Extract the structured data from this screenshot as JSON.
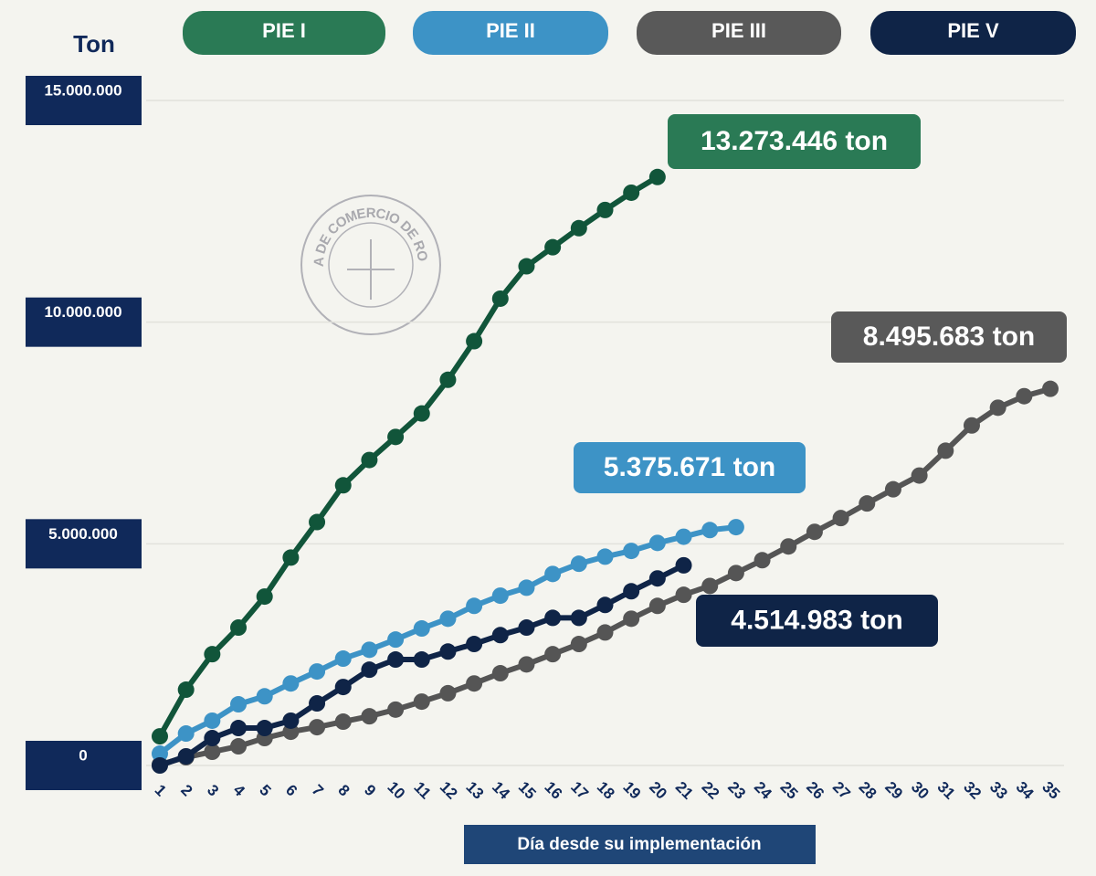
{
  "chart_data": {
    "type": "line",
    "y_label": "Ton",
    "x_label": "Día desde su implementación",
    "logo": "BOLSA DE COMERCIO DE ROSARIO",
    "x": [
      1,
      2,
      3,
      4,
      5,
      6,
      7,
      8,
      9,
      10,
      11,
      12,
      13,
      14,
      15,
      16,
      17,
      18,
      19,
      20,
      21,
      22,
      23,
      24,
      25,
      26,
      27,
      28,
      29,
      30,
      31,
      32,
      33,
      34,
      35
    ],
    "xlim": [
      1,
      35
    ],
    "ylim": [
      0,
      15000000
    ],
    "yticks": [
      0,
      {
        "value": 5000000,
        "label": "5.000.000"
      },
      {
        "value": 10000000,
        "label": "10.000.000"
      },
      {
        "value": 15000000,
        "label": "15.000.000"
      }
    ],
    "grid": true,
    "series": [
      {
        "name": "PIE I",
        "color": "#11553a",
        "legend_color": "#2a7a55",
        "values": [
          658000,
          1710000,
          2510000,
          3110000,
          3810000,
          4690000,
          5490000,
          6320000,
          6890000,
          7410000,
          7940000,
          8700000,
          9570000,
          10530000,
          11260000,
          11690000,
          12120000,
          12530000,
          12920000,
          13273446,
          null,
          null,
          null,
          null,
          null,
          null,
          null,
          null,
          null,
          null,
          null,
          null,
          null,
          null,
          null
        ],
        "value_labels": [
          null,
          null,
          null,
          null,
          null,
          null,
          null,
          null,
          null,
          null,
          null,
          null,
          null,
          null,
          null,
          null,
          null,
          null,
          null,
          "13.273.446 ton",
          null,
          null,
          null,
          null,
          null,
          null,
          null,
          null,
          null,
          null,
          null,
          null,
          null,
          null,
          null
        ]
      },
      {
        "name": "PIE II",
        "color": "#3d93c6",
        "legend_color": "#3d93c6",
        "values": [
          267000,
          720000,
          1010000,
          1380000,
          1560000,
          1850000,
          2120000,
          2410000,
          2610000,
          2840000,
          3090000,
          3310000,
          3600000,
          3830000,
          4010000,
          4320000,
          4550000,
          4710000,
          4840000,
          5020000,
          5160000,
          5310000,
          5375671,
          null,
          null,
          null,
          null,
          null,
          null,
          null,
          null,
          null,
          null,
          null,
          null
        ],
        "value_labels": [
          null,
          null,
          null,
          null,
          null,
          null,
          null,
          null,
          null,
          null,
          null,
          null,
          null,
          null,
          null,
          null,
          null,
          null,
          null,
          null,
          null,
          null,
          "5.375.671 ton",
          null,
          null,
          null,
          null,
          null,
          null,
          null,
          null,
          null,
          null,
          null,
          null
        ]
      },
      {
        "name": "PIE III",
        "color": "#555555",
        "legend_color": "#595959",
        "values": [
          20000,
          185000,
          309000,
          432000,
          617000,
          761000,
          864000,
          988000,
          1110000,
          1260000,
          1440000,
          1630000,
          1850000,
          2080000,
          2280000,
          2510000,
          2740000,
          3000000,
          3310000,
          3600000,
          3850000,
          4050000,
          4340000,
          4630000,
          4940000,
          5270000,
          5580000,
          5910000,
          6230000,
          6540000,
          7100000,
          7670000,
          8070000,
          8330000,
          8495683
        ],
        "value_labels": [
          null,
          null,
          null,
          null,
          null,
          null,
          null,
          null,
          null,
          null,
          null,
          null,
          null,
          null,
          null,
          null,
          null,
          null,
          null,
          null,
          null,
          null,
          null,
          null,
          null,
          null,
          null,
          null,
          null,
          null,
          null,
          null,
          null,
          null,
          "8.495.683 ton"
        ]
      },
      {
        "name": "PIE V",
        "color": "#0f2447",
        "legend_color": "#0f2447",
        "values": [
          0,
          206000,
          617000,
          844000,
          844000,
          1010000,
          1400000,
          1770000,
          2160000,
          2390000,
          2390000,
          2570000,
          2740000,
          2940000,
          3110000,
          3330000,
          3330000,
          3620000,
          3930000,
          4220000,
          4514983,
          null,
          null,
          null,
          null,
          null,
          null,
          null,
          null,
          null,
          null,
          null,
          null,
          null,
          null
        ],
        "value_labels": [
          null,
          null,
          null,
          null,
          null,
          null,
          null,
          null,
          null,
          null,
          null,
          null,
          null,
          null,
          null,
          null,
          null,
          null,
          null,
          null,
          "4.514.983 ton",
          null,
          null,
          null,
          null,
          null,
          null,
          null,
          null,
          null,
          null,
          null,
          null,
          null,
          null
        ]
      }
    ]
  }
}
